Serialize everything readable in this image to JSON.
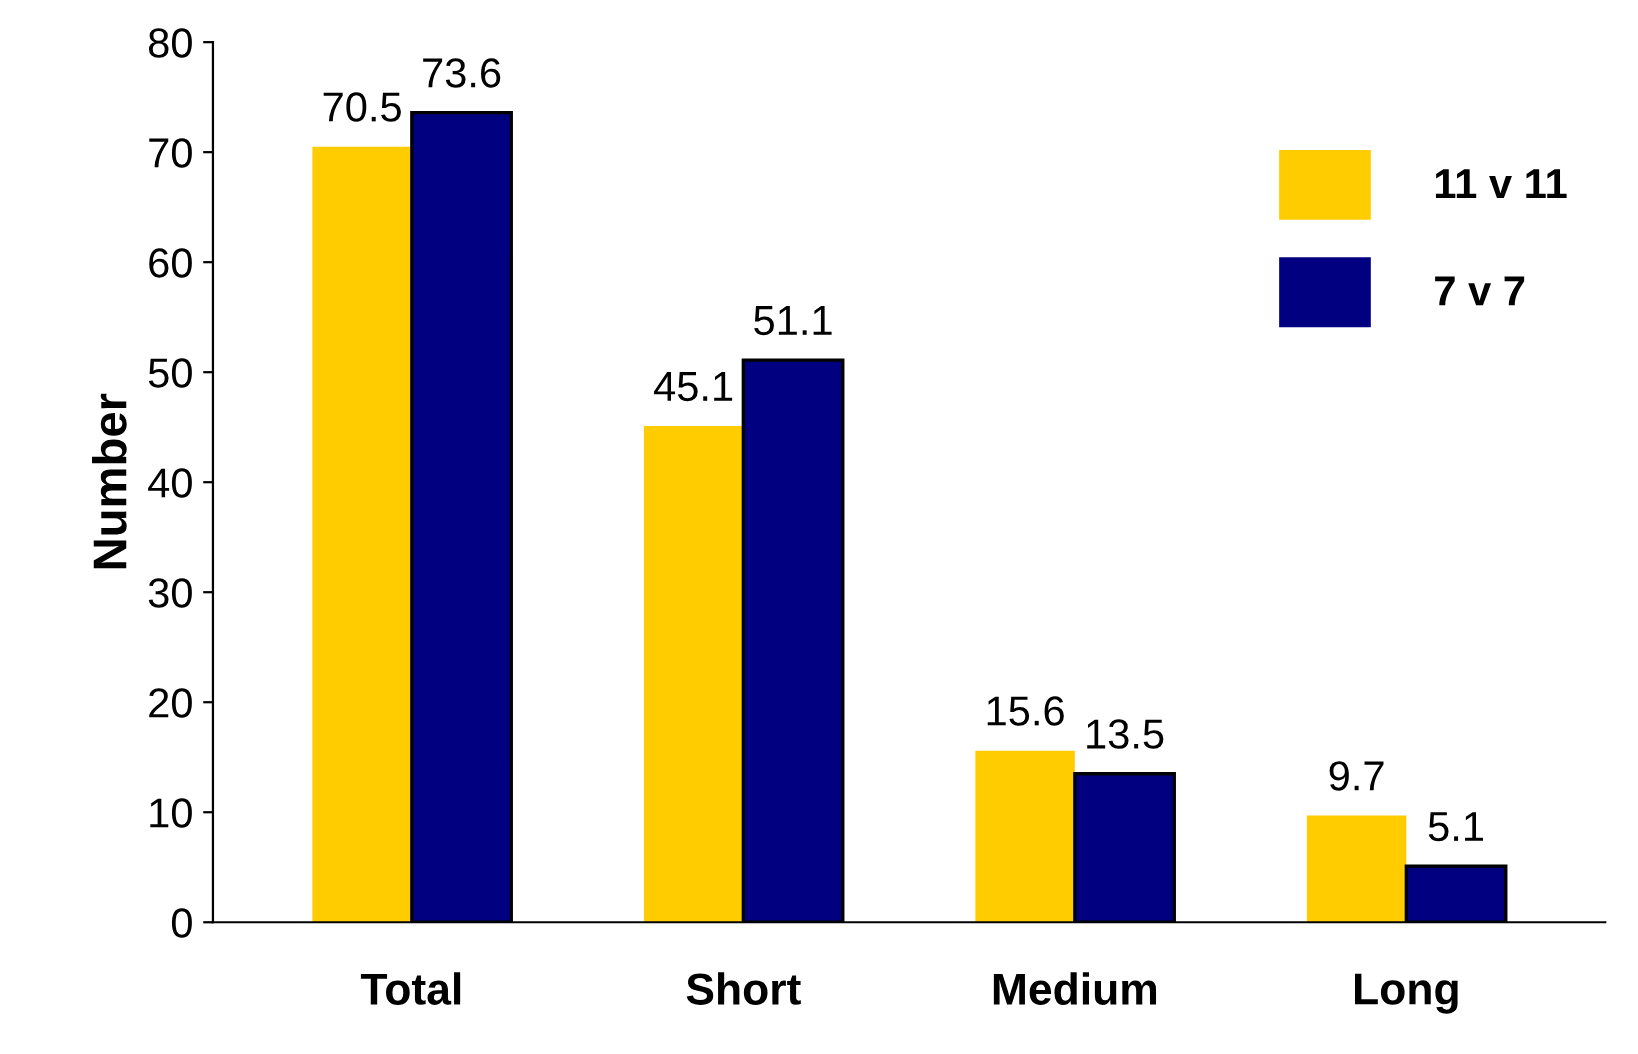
{
  "chart_data": {
    "type": "bar",
    "ylabel": "Number",
    "categories": [
      "Total",
      "Short",
      "Medium",
      "Long"
    ],
    "series": [
      {
        "name": "11 v 11",
        "color": "#ffcc00",
        "values": [
          70.5,
          45.1,
          15.6,
          9.7
        ]
      },
      {
        "name": "7 v 7",
        "color": "#000080",
        "values": [
          73.6,
          51.1,
          13.5,
          5.1
        ]
      }
    ],
    "ylim": [
      0,
      80
    ],
    "yticks": [
      0,
      10,
      20,
      30,
      40,
      50,
      60,
      70,
      80
    ],
    "data_labels": true,
    "grid": false,
    "legend": "top right"
  }
}
